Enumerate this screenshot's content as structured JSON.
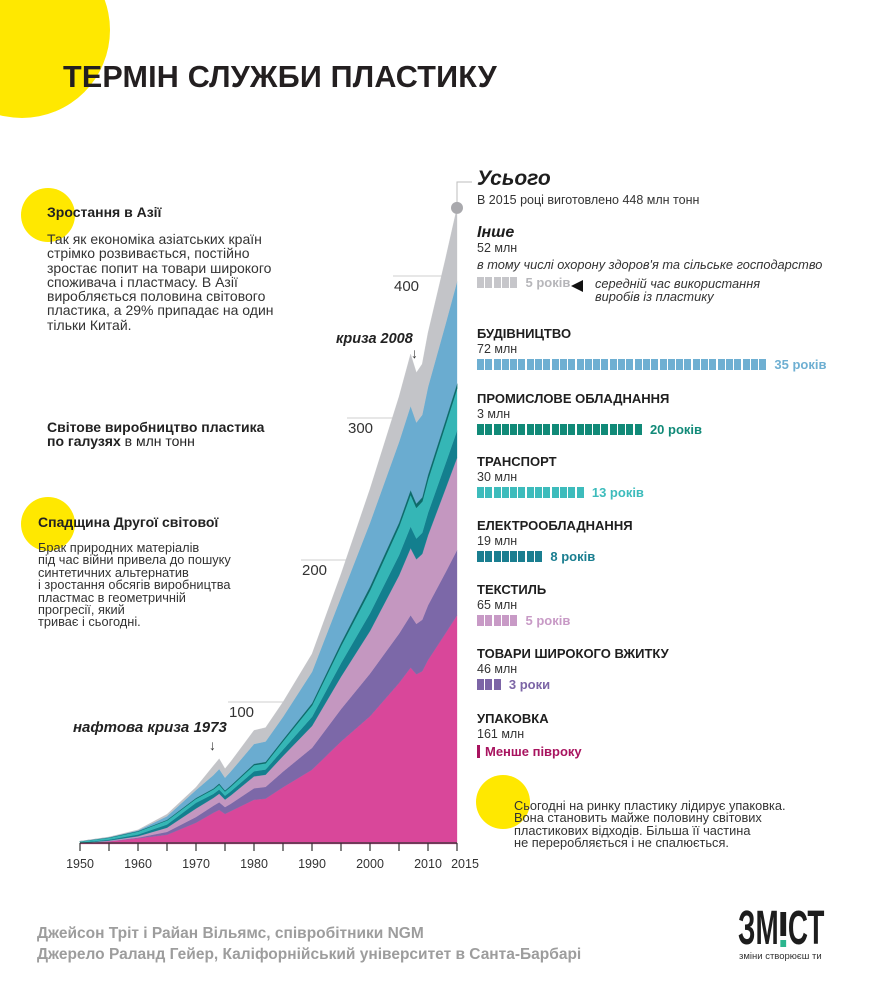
{
  "title": "ТЕРМІН СЛУЖБИ ПЛАСТИКУ",
  "left": {
    "asia": {
      "heading": "Зростання в Азії",
      "lines": [
        "Так як економіка азіатських країн",
        "стрімко розвивається, постійно",
        "зростає попит на товари широкого",
        "споживача і пластмасу. В Азії",
        "виробляється половина світового",
        "пластика, а 29% припадає на один",
        "тільки Китай."
      ]
    },
    "chart_label": {
      "bold_line1": "Світове виробництво пластика",
      "bold_line2": "по галузях",
      "unit": " в млн тонн"
    },
    "ww2": {
      "heading": "Спадщина Другої світової",
      "lines": [
        "Брак природних матеріалів",
        "під час війни привела до пошуку",
        "синтетичних альтернатив",
        "і зростання обсягів виробництва",
        "пластмас в геометричній",
        "прогресії, який",
        "триває і сьогодні."
      ]
    }
  },
  "total": {
    "heading": "Усього",
    "text": "В 2015 році виготовлено 448 млн тонн"
  },
  "sectors": [
    {
      "key": "other",
      "name": "Інше",
      "amount": "52 млн",
      "note": "в тому числі охорону здоров'я та сільське господарство",
      "blocks": 5,
      "lifespan": "5 років",
      "color": "#c6c6ca",
      "label_color": "#b6b6ba"
    },
    {
      "key": "building",
      "name": "БУДІВНИЦТВО",
      "amount": "72 млн",
      "blocks": 35,
      "lifespan": "35 років",
      "color": "#6eafd2",
      "label_color": "#6eafd2"
    },
    {
      "key": "industrial",
      "name": "ПРОМИСЛОВЕ ОБЛАДНАННЯ",
      "amount": "3 млн",
      "blocks": 20,
      "lifespan": "20 років",
      "color": "#118a78",
      "label_color": "#118a78"
    },
    {
      "key": "transport",
      "name": "ТРАНСПОРТ",
      "amount": "30 млн",
      "blocks": 13,
      "lifespan": "13 років",
      "color": "#3dbcbc",
      "label_color": "#3dbcbc"
    },
    {
      "key": "electrical",
      "name": "ЕЛЕКТРООБЛАДНАННЯ",
      "amount": "19 млн",
      "blocks": 8,
      "lifespan": "8 років",
      "color": "#1a7e90",
      "label_color": "#1a7e90"
    },
    {
      "key": "textiles",
      "name": "ТЕКСТИЛЬ",
      "amount": "65 млн",
      "blocks": 5,
      "lifespan": "5 років",
      "color": "#c89ac6",
      "label_color": "#c89ac6"
    },
    {
      "key": "consumer",
      "name": "ТОВАРИ ШИРОКОГО ВЖИТКУ",
      "amount": "46 млн",
      "blocks": 3,
      "lifespan": "3 роки",
      "color": "#7c65a6",
      "label_color": "#7c65a6"
    },
    {
      "key": "packaging",
      "name": "УПАКОВКА",
      "amount": "161 млн",
      "blocks": 0,
      "lifespan": "Менше півроку",
      "color": "#a8135f",
      "label_color": "#a8135f"
    }
  ],
  "legend_marker": {
    "icon": "left-triangle-icon",
    "lines": [
      "середній час використання",
      "виробів із пластику"
    ]
  },
  "packaging_note": {
    "lines": [
      "Сьогодні на ринку пластику лідирує упаковка.",
      "Вона становить майже половину світових",
      "пластикових відходів. Більша її частина",
      "не переробляється і не спалюється."
    ]
  },
  "footer": {
    "line1": "Джейсон Тріт і Райан Вільямс, співробітники NGM",
    "line2": "Джерело Раланд Гейер, Каліфорнійський університет в Санта-Барбарі"
  },
  "logo": {
    "left": "ЗМ",
    "right": "СТ",
    "tagline": "зміни створюєш ти"
  },
  "colors": {
    "accent_yellow": "#ffe800",
    "title": "#231f20",
    "footer_grey": "#9d9d9d"
  },
  "chart_data": {
    "type": "area",
    "stacked": true,
    "title": "Світове виробництво пластика по галузях",
    "xlabel": "",
    "ylabel": "млн тонн",
    "xlim": [
      1950,
      2015
    ],
    "ylim": [
      0,
      450
    ],
    "grid": false,
    "legend": "none",
    "xticks": [
      1950,
      1960,
      1970,
      1980,
      1990,
      2000,
      2010,
      2015
    ],
    "yticks": [
      100,
      200,
      300,
      400
    ],
    "annotations": [
      {
        "text": "нафтова криза 1973",
        "x": 1973,
        "arrow": "↓"
      },
      {
        "text": "криза 2008",
        "x": 2008,
        "arrow": "↓"
      },
      {
        "text": "Усього",
        "x": 2015,
        "y": 448
      }
    ],
    "x": [
      1950,
      1955,
      1960,
      1965,
      1970,
      1973,
      1974,
      1975,
      1976,
      1980,
      1982,
      1985,
      1990,
      1995,
      2000,
      2005,
      2007,
      2008,
      2009,
      2010,
      2013,
      2015
    ],
    "series": [
      {
        "key": "packaging",
        "name": "Упаковка",
        "color": "#d9479a",
        "values": [
          0.5,
          1.8,
          4.0,
          6.5,
          15.0,
          22.0,
          24.0,
          21.2,
          23.2,
          31.2,
          32.0,
          40.0,
          52.3,
          72.2,
          90.0,
          113.4,
          124.2,
          119.5,
          121.7,
          129.6,
          148.3,
          161
        ]
      },
      {
        "key": "consumer",
        "name": "Товари широкого вжитку",
        "color": "#7c68a8",
        "values": [
          0.05,
          0.2,
          0.5,
          2.0,
          4.0,
          5.0,
          5.4,
          4.8,
          5.2,
          8.0,
          8.2,
          11.0,
          15.4,
          22.8,
          30.0,
          34.7,
          36.9,
          35.5,
          36.2,
          38.5,
          42.8,
          46
        ]
      },
      {
        "key": "textiles",
        "name": "Текстиль",
        "color": "#c497c0",
        "values": [
          0.1,
          0.4,
          1.0,
          3.0,
          6.0,
          5.5,
          6.0,
          5.3,
          5.8,
          8.4,
          8.6,
          11.0,
          15.4,
          22.8,
          30.0,
          41.0,
          47.3,
          45.5,
          46.3,
          49.3,
          58.9,
          65
        ]
      },
      {
        "key": "electrical",
        "name": "Електрообладнання",
        "color": "#137f8e",
        "values": [
          0.35,
          0.7,
          1.2,
          2.2,
          4.0,
          2.8,
          3.0,
          2.7,
          2.9,
          3.6,
          3.7,
          4.5,
          6.4,
          9.5,
          12.5,
          14.2,
          15.2,
          14.6,
          14.9,
          15.8,
          17.7,
          19
        ]
      },
      {
        "key": "transport",
        "name": "Транспорт",
        "color": "#35b6b6",
        "values": [
          0.8,
          1.4,
          2.2,
          3.0,
          3.0,
          3.3,
          3.6,
          3.2,
          3.5,
          4.4,
          4.5,
          6.0,
          8.3,
          12.4,
          16.3,
          20.5,
          22.8,
          21.9,
          22.3,
          23.8,
          27.6,
          30
        ]
      },
      {
        "key": "industrial",
        "name": "Промислове обладнання",
        "color": "#0f6b6a",
        "values": [
          0.05,
          0.1,
          0.2,
          0.3,
          0.4,
          0.5,
          0.6,
          0.5,
          0.6,
          0.8,
          0.8,
          1.0,
          1.3,
          1.9,
          2.5,
          2.5,
          2.8,
          2.7,
          2.7,
          2.9,
          2.9,
          3
        ]
      },
      {
        "key": "building",
        "name": "Будівництво",
        "color": "#6aacd0",
        "values": [
          0.1,
          0.2,
          0.5,
          2.5,
          5.6,
          9.4,
          10.2,
          9.0,
          9.9,
          14.0,
          14.4,
          16.0,
          22.1,
          32.3,
          45.0,
          56.7,
          59.3,
          57.1,
          58.1,
          61.9,
          67.6,
          72
        ]
      },
      {
        "key": "other",
        "name": "Інше",
        "color": "#c3c4c8",
        "values": [
          0.05,
          0.2,
          0.4,
          1.5,
          2.0,
          6.6,
          7.2,
          6.3,
          6.9,
          9.6,
          9.8,
          10.5,
          12.7,
          16.2,
          23.7,
          32.0,
          36.5,
          35.2,
          35.8,
          38.2,
          46.1,
          52
        ]
      }
    ]
  }
}
